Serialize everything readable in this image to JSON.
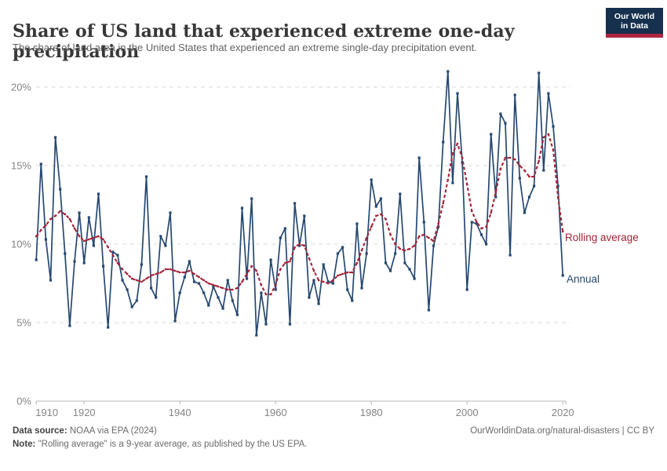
{
  "header": {
    "title": "Share of US land that experienced extreme one-day precipitation",
    "subtitle": "The share of land area in the United States that experienced an extreme single-day precipitation event.",
    "logo": {
      "line1": "Our World",
      "line2": "in Data"
    }
  },
  "chart_data": {
    "type": "line",
    "title": "Share of US land that experienced extreme one-day precipitation",
    "xlabel": "",
    "ylabel": "",
    "x": {
      "start": 1910,
      "end": 2020,
      "step": 1
    },
    "xticks": [
      1910,
      1920,
      1940,
      1960,
      1980,
      2000,
      2020
    ],
    "yticks": [
      0,
      5,
      10,
      15,
      20
    ],
    "ytick_suffix": "%",
    "ylim": [
      0,
      21.5
    ],
    "grid": "horizontal-dashed",
    "legend": "end-of-line-labels",
    "series": [
      {
        "name": "Annual",
        "color": "#264870",
        "style": "solid-with-square-markers",
        "values": [
          9.0,
          15.1,
          10.3,
          7.7,
          16.8,
          13.5,
          9.4,
          4.8,
          8.9,
          12.0,
          8.8,
          11.7,
          9.9,
          13.2,
          8.6,
          4.7,
          9.5,
          9.3,
          7.7,
          7.1,
          6.0,
          6.4,
          8.7,
          14.3,
          7.2,
          6.6,
          10.5,
          9.9,
          12.0,
          5.1,
          6.9,
          7.9,
          8.9,
          7.6,
          7.5,
          6.9,
          6.1,
          7.3,
          6.6,
          5.9,
          7.7,
          6.4,
          5.5,
          12.3,
          7.8,
          12.9,
          4.2,
          6.9,
          4.9,
          9.0,
          7.1,
          10.4,
          11.0,
          4.9,
          12.6,
          9.9,
          11.8,
          6.6,
          7.7,
          6.2,
          8.7,
          7.6,
          7.5,
          9.4,
          9.8,
          7.1,
          6.4,
          11.3,
          7.2,
          9.4,
          14.1,
          12.4,
          12.9,
          8.8,
          8.3,
          9.4,
          13.2,
          8.8,
          8.4,
          7.8,
          15.5,
          11.4,
          5.8,
          9.9,
          11.1,
          16.5,
          21.0,
          13.9,
          19.6,
          15.2,
          7.1,
          11.4,
          11.3,
          10.6,
          10.0,
          17.0,
          13.0,
          18.3,
          17.7,
          9.3,
          19.5,
          14.2,
          12.0,
          13.0,
          13.7,
          20.9,
          14.7,
          19.6,
          17.5,
          13.7,
          8.0
        ]
      },
      {
        "name": "Rolling average",
        "color": "#a32438",
        "style": "dashed-with-square-markers",
        "values": [
          10.5,
          10.9,
          11.2,
          11.6,
          11.8,
          12.1,
          11.9,
          11.6,
          11.0,
          10.5,
          10.2,
          10.3,
          10.4,
          10.5,
          10.3,
          9.8,
          9.3,
          8.8,
          8.4,
          8.1,
          7.8,
          7.7,
          7.6,
          7.8,
          8.0,
          8.1,
          8.2,
          8.4,
          8.4,
          8.3,
          8.2,
          8.2,
          8.3,
          8.1,
          7.9,
          7.7,
          7.5,
          7.4,
          7.3,
          7.2,
          7.1,
          7.1,
          7.2,
          7.6,
          8.1,
          8.6,
          8.3,
          7.4,
          6.8,
          6.8,
          7.4,
          8.4,
          8.8,
          8.9,
          9.8,
          10.0,
          9.9,
          9.1,
          8.3,
          7.7,
          7.6,
          7.5,
          7.7,
          8.0,
          8.1,
          8.2,
          8.2,
          8.8,
          9.6,
          10.4,
          11.1,
          11.8,
          11.9,
          11.6,
          10.6,
          10.0,
          9.7,
          9.6,
          9.7,
          9.9,
          10.5,
          10.6,
          10.4,
          10.2,
          11.3,
          12.6,
          14.1,
          15.8,
          16.4,
          15.5,
          13.8,
          12.1,
          11.4,
          11.0,
          11.1,
          12.0,
          13.3,
          14.8,
          15.5,
          15.5,
          15.4,
          15.0,
          14.7,
          14.3,
          14.3,
          15.3,
          16.8,
          17.0,
          16.0,
          13.0,
          10.8
        ]
      }
    ]
  },
  "series_labels": {
    "rolling": "Rolling average",
    "annual": "Annual"
  },
  "footer": {
    "source_label": "Data source:",
    "source_text": " NOAA via EPA (2024)",
    "note_label": "Note:",
    "note_text": " \"Rolling average\" is a 9-year average, as published by the US EPA.",
    "link_text": "OurWorldinData.org/natural-disasters | CC BY"
  },
  "colors": {
    "annual_line": "#264870",
    "rolling_line": "#a32438",
    "grid": "#d9d9d9",
    "axis": "#b8b8b8",
    "tick_text": "#858585",
    "logo_bg": "#16304e",
    "logo_accent": "#b02540"
  }
}
